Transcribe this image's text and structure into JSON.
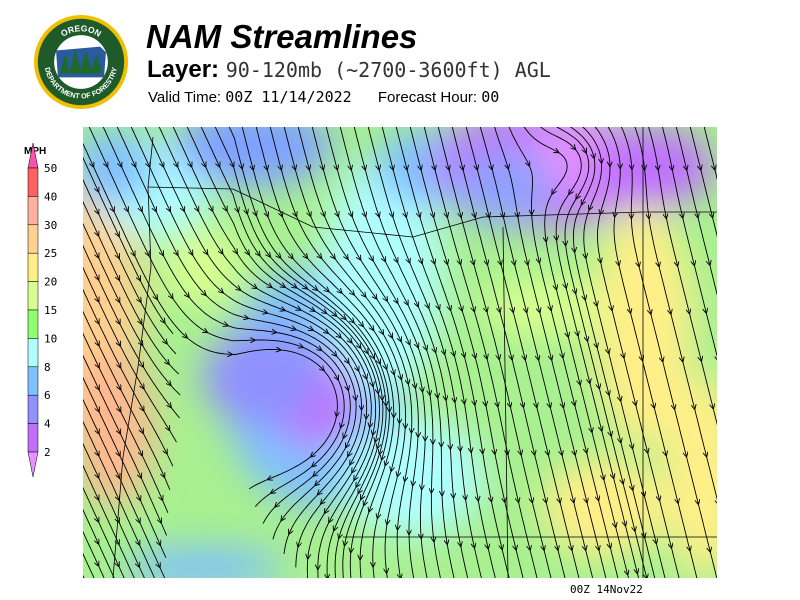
{
  "header": {
    "title": "NAM Streamlines",
    "layer_label": "Layer:",
    "layer_value": "90-120mb (~2700-3600ft) AGL",
    "valid_time_label": "Valid Time:",
    "valid_time_value": "00Z 11/14/2022",
    "forecast_hour_label": "Forecast Hour:",
    "forecast_hour_value": "00"
  },
  "logo": {
    "text_top": "OREGON",
    "text_bottom": "DEPARTMENT OF FORESTRY"
  },
  "legend": {
    "unit": "MPH",
    "bins": [
      {
        "label": "50",
        "color": "#ff6060"
      },
      {
        "label": "40",
        "color": "#ffb0a0"
      },
      {
        "label": "30",
        "color": "#ffd090"
      },
      {
        "label": "25",
        "color": "#ffef88"
      },
      {
        "label": "20",
        "color": "#d8ff90"
      },
      {
        "label": "15",
        "color": "#90ff70"
      },
      {
        "label": "10",
        "color": "#b0ffff"
      },
      {
        "label": "8",
        "color": "#80c0ff"
      },
      {
        "label": "6",
        "color": "#9090ff"
      },
      {
        "label": "4",
        "color": "#c070ff"
      },
      {
        "label": "2",
        "color": ""
      }
    ],
    "over_color": "#ff50b0",
    "under_color": "#e890ff"
  },
  "footer": {
    "timestamp": "00Z 14Nov22"
  }
}
